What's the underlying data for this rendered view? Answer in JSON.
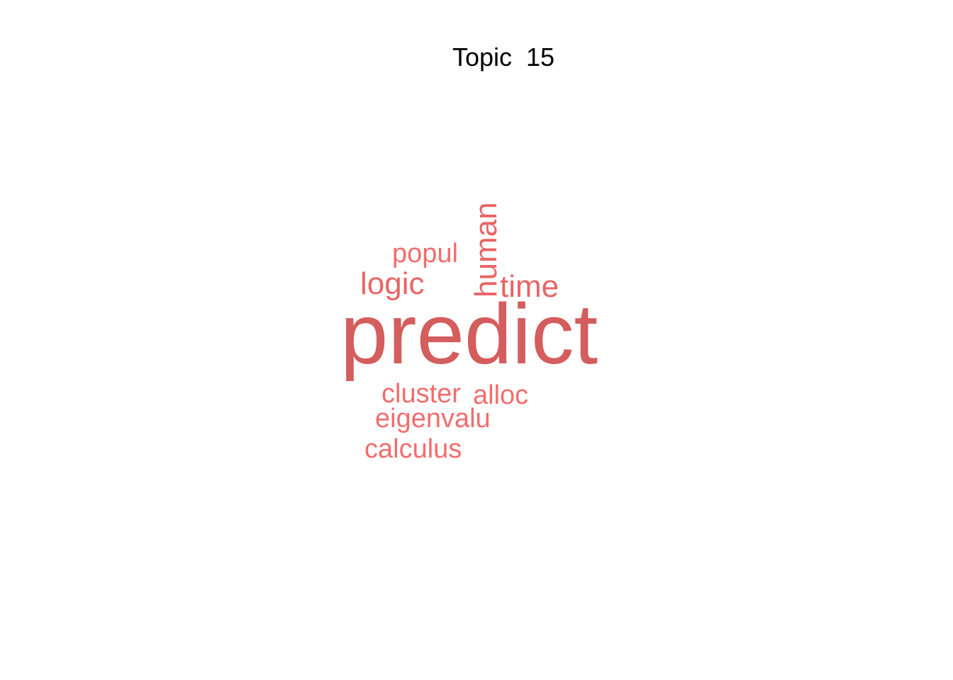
{
  "chart_data": {
    "type": "wordcloud",
    "title": "Topic  15",
    "words": [
      {
        "text": "predict",
        "weight": 1.0,
        "color": "#d45d5d",
        "rotated": false
      },
      {
        "text": "human",
        "weight": 0.42,
        "color": "#e86565",
        "rotated": true
      },
      {
        "text": "time",
        "weight": 0.42,
        "color": "#e86565",
        "rotated": false
      },
      {
        "text": "logic",
        "weight": 0.42,
        "color": "#e86565",
        "rotated": false
      },
      {
        "text": "popul",
        "weight": 0.38,
        "color": "#f26d6d",
        "rotated": false
      },
      {
        "text": "cluster",
        "weight": 0.38,
        "color": "#f26d6d",
        "rotated": false
      },
      {
        "text": "alloc",
        "weight": 0.38,
        "color": "#f26d6d",
        "rotated": false
      },
      {
        "text": "eigenvalu",
        "weight": 0.38,
        "color": "#f26d6d",
        "rotated": false
      },
      {
        "text": "calculus",
        "weight": 0.38,
        "color": "#f26d6d",
        "rotated": false
      }
    ]
  }
}
